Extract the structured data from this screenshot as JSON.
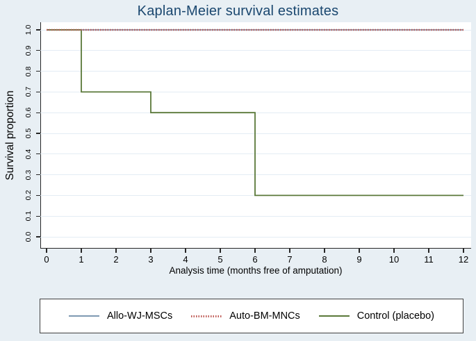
{
  "colors": {
    "background": "#e8eff4",
    "plot_background": "#ffffff",
    "gridline": "#e3ecf4",
    "axis": "#262626",
    "title": "#1a476f",
    "text": "#000000",
    "legend_border": "#3f3f3f"
  },
  "chart_data": {
    "type": "line",
    "subtype": "kaplan-meier-step",
    "title": "Kaplan-Meier survival estimates",
    "xlabel": "Analysis time (months free of amputation)",
    "ylabel": "Survival proportion",
    "xlim": [
      0,
      12
    ],
    "ylim": [
      0.0,
      1.0
    ],
    "x_ticks": [
      0,
      1,
      2,
      3,
      4,
      5,
      6,
      7,
      8,
      9,
      10,
      11,
      12
    ],
    "x_tick_labels": [
      "0",
      "1",
      "2",
      "3",
      "4",
      "5",
      "6",
      "7",
      "8",
      "9",
      "10",
      "11",
      "12"
    ],
    "y_ticks": [
      0.0,
      0.1,
      0.2,
      0.3,
      0.4,
      0.5,
      0.6,
      0.7,
      0.8,
      0.9,
      1.0
    ],
    "y_tick_labels": [
      "0.0",
      "0.1",
      "0.2",
      "0.3",
      "0.4",
      "0.5",
      "0.6",
      "0.7",
      "0.8",
      "0.9",
      "1.0"
    ],
    "grid": "horizontal",
    "legend_position": "bottom",
    "series": [
      {
        "name": "Allo-WJ-MSCs",
        "style": "solid",
        "color": "#7e99b2",
        "points": [
          [
            0,
            1.0
          ],
          [
            12,
            1.0
          ]
        ]
      },
      {
        "name": "Auto-BM-MNCs",
        "style": "dotted",
        "color": "#bf5a55",
        "points": [
          [
            0,
            1.0
          ],
          [
            12,
            1.0
          ]
        ]
      },
      {
        "name": "Control (placebo)",
        "style": "solid",
        "color": "#5a7839",
        "points": [
          [
            0,
            1.0
          ],
          [
            1,
            1.0
          ],
          [
            1,
            0.7
          ],
          [
            3,
            0.7
          ],
          [
            3,
            0.6
          ],
          [
            6,
            0.6
          ],
          [
            6,
            0.2
          ],
          [
            12,
            0.2
          ]
        ]
      }
    ]
  }
}
